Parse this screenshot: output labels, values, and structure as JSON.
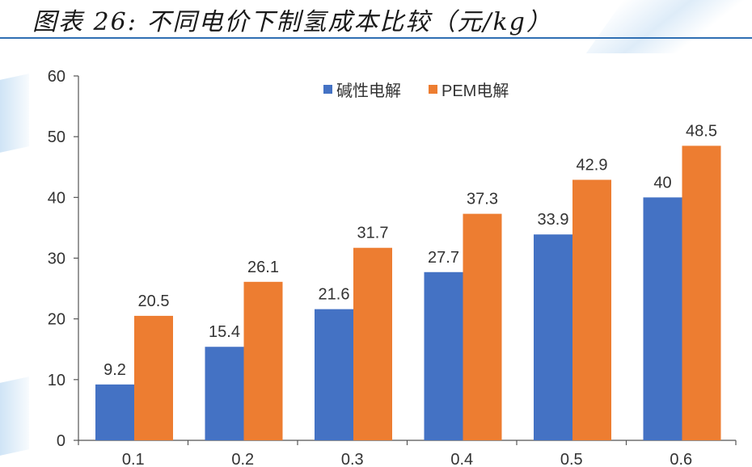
{
  "title": "图表 26:  不同电价下制氢成本比较（元/kg）",
  "colors": {
    "alkaline": "#4472c4",
    "pem": "#ed7d31",
    "title_rule": "#2f6fb3"
  },
  "chart_data": {
    "type": "bar",
    "title": "图表 26:  不同电价下制氢成本比较（元/kg）",
    "categories": [
      "0.1",
      "0.2",
      "0.3",
      "0.4",
      "0.5",
      "0.6"
    ],
    "series": [
      {
        "name": "碱性电解",
        "values": [
          9.2,
          15.4,
          21.6,
          27.7,
          33.9,
          40
        ]
      },
      {
        "name": "PEM电解",
        "values": [
          20.5,
          26.1,
          31.7,
          37.3,
          42.9,
          48.5
        ]
      }
    ],
    "value_labels": [
      [
        "9.2",
        "15.4",
        "21.6",
        "27.7",
        "33.9",
        "40"
      ],
      [
        "20.5",
        "26.1",
        "31.7",
        "37.3",
        "42.9",
        "48.5"
      ]
    ],
    "ylim": [
      0,
      60
    ],
    "yticks": [
      "0",
      "10",
      "20",
      "30",
      "40",
      "50",
      "60"
    ],
    "xlabel": "",
    "ylabel": "",
    "grid": false,
    "legend_position": "top-right"
  }
}
